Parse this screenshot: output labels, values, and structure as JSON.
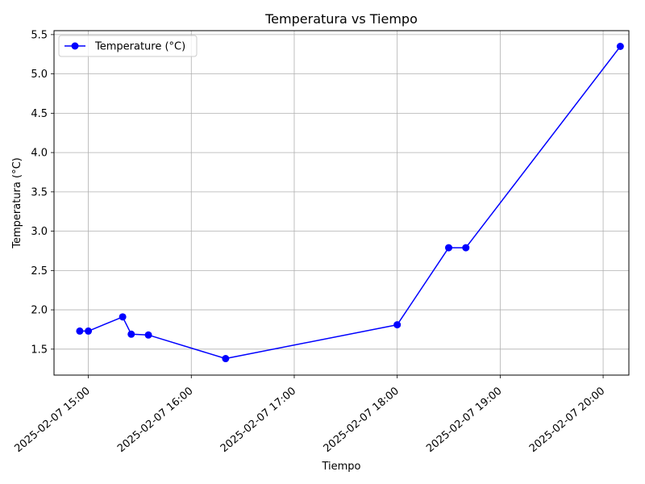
{
  "chart_data": {
    "type": "line",
    "title": "Temperatura vs Tiempo",
    "xlabel": "Tiempo",
    "ylabel": "Temperatura (°C)",
    "grid": true,
    "legend_position": "top-left",
    "colors": {
      "series": "#0000ff",
      "grid": "#b0b0b0"
    },
    "xlim": [
      "2025-02-07 14:40",
      "2025-02-07 20:15"
    ],
    "ylim": [
      1.17,
      5.55
    ],
    "x_ticks": [
      {
        "value": "2025-02-07 15:00",
        "label": "2025-02-07 15:00"
      },
      {
        "value": "2025-02-07 16:00",
        "label": "2025-02-07 16:00"
      },
      {
        "value": "2025-02-07 17:00",
        "label": "2025-02-07 17:00"
      },
      {
        "value": "2025-02-07 18:00",
        "label": "2025-02-07 18:00"
      },
      {
        "value": "2025-02-07 19:00",
        "label": "2025-02-07 19:00"
      },
      {
        "value": "2025-02-07 20:00",
        "label": "2025-02-07 20:00"
      }
    ],
    "y_ticks": [
      {
        "value": 1.5,
        "label": "1.5"
      },
      {
        "value": 2.0,
        "label": "2.0"
      },
      {
        "value": 2.5,
        "label": "2.5"
      },
      {
        "value": 3.0,
        "label": "3.0"
      },
      {
        "value": 3.5,
        "label": "3.5"
      },
      {
        "value": 4.0,
        "label": "4.0"
      },
      {
        "value": 4.5,
        "label": "4.5"
      },
      {
        "value": 5.0,
        "label": "5.0"
      },
      {
        "value": 5.5,
        "label": "5.5"
      }
    ],
    "series": [
      {
        "name": "Temperature (°C)",
        "marker": "circle",
        "points": [
          {
            "x": "2025-02-07 14:55",
            "y": 1.73
          },
          {
            "x": "2025-02-07 15:00",
            "y": 1.73
          },
          {
            "x": "2025-02-07 15:20",
            "y": 1.91
          },
          {
            "x": "2025-02-07 15:25",
            "y": 1.69
          },
          {
            "x": "2025-02-07 15:35",
            "y": 1.68
          },
          {
            "x": "2025-02-07 16:20",
            "y": 1.38
          },
          {
            "x": "2025-02-07 18:00",
            "y": 1.81
          },
          {
            "x": "2025-02-07 18:30",
            "y": 2.79
          },
          {
            "x": "2025-02-07 18:40",
            "y": 2.79
          },
          {
            "x": "2025-02-07 20:10",
            "y": 5.35
          }
        ]
      }
    ]
  }
}
